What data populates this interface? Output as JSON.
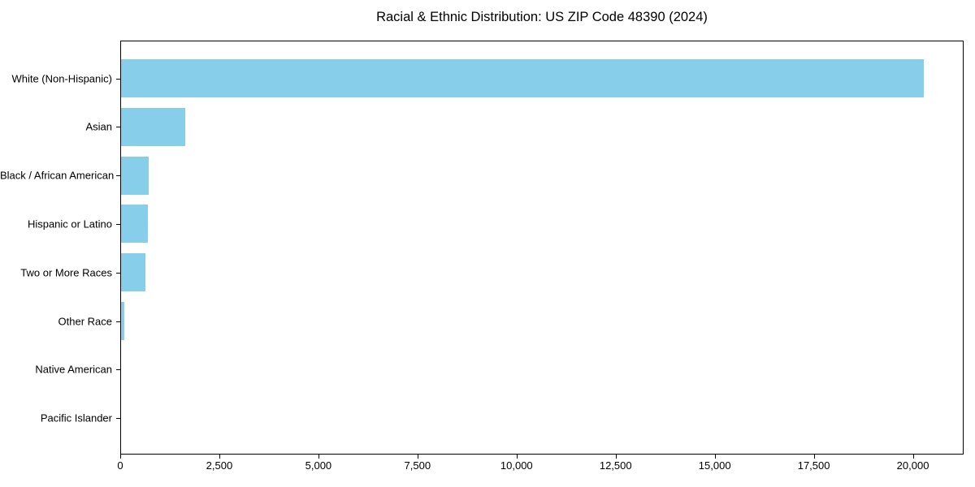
{
  "figure": {
    "background": "#ffffff",
    "spine_color": "#000000",
    "text_color": "#000000"
  },
  "chart_data": {
    "type": "bar",
    "orientation": "horizontal",
    "title": "Racial & Ethnic Distribution: US ZIP Code 48390 (2024)",
    "xlabel": "",
    "ylabel": "",
    "categories": [
      "White (Non-Hispanic)",
      "Asian",
      "Black / African American",
      "Hispanic or Latino",
      "Two or More Races",
      "Other Race",
      "Native American",
      "Pacific Islander"
    ],
    "values": [
      20250,
      1615,
      705,
      680,
      615,
      90,
      0,
      0
    ],
    "bar_color": "#87CEEB",
    "xlim": [
      0,
      21280
    ],
    "x_ticks": [
      0,
      2500,
      5000,
      7500,
      10000,
      12500,
      15000,
      17500,
      20000
    ],
    "x_tick_labels": [
      "0",
      "2,500",
      "5,000",
      "7,500",
      "10,000",
      "12,500",
      "15,000",
      "17,500",
      "20,000"
    ],
    "grid": false,
    "legend": null
  }
}
